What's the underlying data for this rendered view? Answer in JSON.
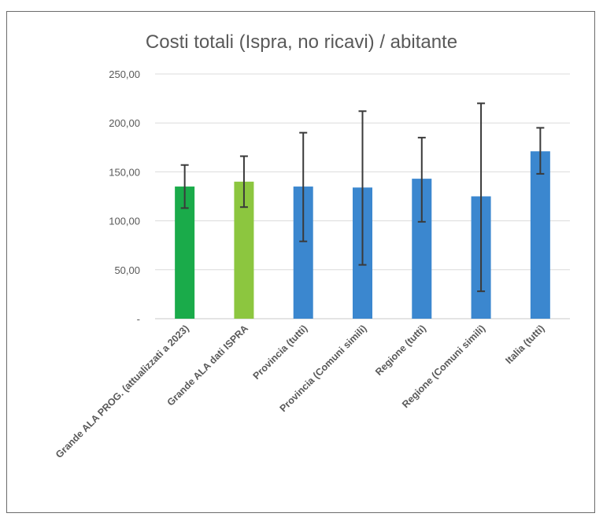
{
  "chart_data": {
    "type": "bar",
    "title": "Costi totali (Ispra, no ricavi) / abitante",
    "xlabel": "",
    "ylabel": "",
    "ylim": [
      0,
      250
    ],
    "yticks": [
      0,
      50,
      100,
      150,
      200,
      250
    ],
    "ytick_labels": [
      "-",
      "50,00",
      "100,00",
      "150,00",
      "200,00",
      "250,00"
    ],
    "grid": true,
    "legend": "none",
    "categories": [
      "Grande ALA PROG. (attualizzati a 2023)",
      "Grande ALA dati ISPRA",
      "Provincia (tutti)",
      "Provincia (Comuni simili)",
      "Regione (tutti)",
      "Regione (Comuni simili)",
      "Italia (tutti)"
    ],
    "values": [
      135,
      140,
      135,
      134,
      143,
      125,
      171
    ],
    "error_low": [
      113,
      114,
      79,
      55,
      99,
      28,
      148
    ],
    "error_high": [
      157,
      166,
      190,
      212,
      185,
      220,
      195
    ],
    "colors": [
      "#1aab4a",
      "#8cc63f",
      "#3b87cf",
      "#3b87cf",
      "#3b87cf",
      "#3b87cf",
      "#3b87cf"
    ]
  }
}
